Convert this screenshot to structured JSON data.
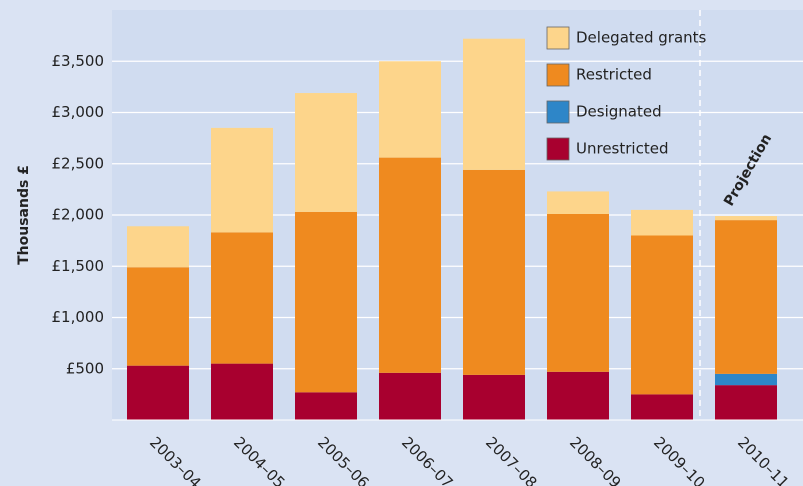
{
  "chart_data": {
    "type": "stacked_bar",
    "y_label": "Thousands £",
    "annotation": "Projection",
    "categories": [
      "2003–04",
      "2004–05",
      "2005–06",
      "2006–07",
      "2007–08",
      "2008–09",
      "2009–10",
      "2010–11"
    ],
    "series": [
      {
        "name": "Unrestricted",
        "color": "#a8002f",
        "values": [
          530,
          550,
          270,
          460,
          440,
          470,
          250,
          340
        ]
      },
      {
        "name": "Designated",
        "color": "#2e86c8",
        "values": [
          0,
          0,
          0,
          0,
          0,
          0,
          0,
          110
        ]
      },
      {
        "name": "Restricted",
        "color": "#ef8a1f",
        "values": [
          960,
          1280,
          1760,
          2100,
          2000,
          1540,
          1550,
          1500
        ]
      },
      {
        "name": "Delegated grants",
        "color": "#fdd58b",
        "values": [
          400,
          1020,
          1160,
          940,
          1280,
          220,
          250,
          40
        ]
      }
    ],
    "ylim": [
      0,
      4000
    ],
    "yticks": [
      {
        "value": 500,
        "label": "£500"
      },
      {
        "value": 1000,
        "label": "£1,000"
      },
      {
        "value": 1500,
        "label": "£1,500"
      },
      {
        "value": 2000,
        "label": "£2,000"
      },
      {
        "value": 2500,
        "label": "£2,500"
      },
      {
        "value": 3000,
        "label": "£3,000"
      },
      {
        "value": 3500,
        "label": "£3,500"
      }
    ],
    "grid": true
  }
}
